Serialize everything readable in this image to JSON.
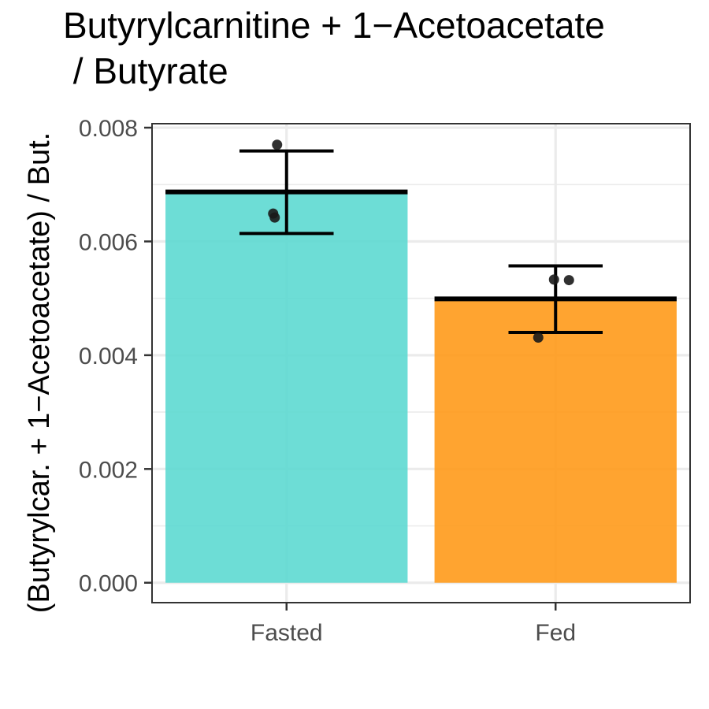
{
  "chart_data": {
    "type": "bar",
    "title_lines": [
      "Butyrylcarnitine + 1−Acetoacetate",
      " / Butyrate"
    ],
    "xlabel": "",
    "ylabel": "(Butyrylcar. + 1−Acetoacetate) / But.",
    "categories": [
      "Fasted",
      "Fed"
    ],
    "values": [
      0.00687,
      0.00499
    ],
    "error_low": [
      0.00614,
      0.0044
    ],
    "error_high": [
      0.00759,
      0.00557
    ],
    "points": [
      [
        0.0077,
        0.00649,
        0.00642
      ],
      [
        0.00533,
        0.00532,
        0.00431
      ]
    ],
    "colors": [
      "#5dd9d2",
      "#ff9a1a"
    ],
    "ylim": [
      -0.00035,
      0.00807
    ],
    "yticks": [
      0.0,
      0.002,
      0.004,
      0.006,
      0.008
    ],
    "ytick_labels": [
      "0.000",
      "0.002",
      "0.004",
      "0.006",
      "0.008"
    ],
    "grid": true,
    "legend": "none"
  }
}
